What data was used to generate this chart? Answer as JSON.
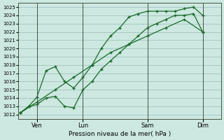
{
  "xlabel": "Pression niveau de la mer( hPa )",
  "bg_color": "#cce8e0",
  "grid_color": "#99bbbb",
  "line_color": "#1a6b2a",
  "marker": "+",
  "ylim": [
    1011.5,
    1025.5
  ],
  "yticks": [
    1012,
    1013,
    1014,
    1015,
    1016,
    1017,
    1018,
    1019,
    1020,
    1021,
    1022,
    1023,
    1024,
    1025
  ],
  "xlim": [
    0,
    11
  ],
  "xtick_labels": [
    "Ven",
    "Lun",
    "Sam",
    "Dim"
  ],
  "xtick_positions": [
    1.0,
    3.5,
    7.0,
    10.0
  ],
  "vline_positions": [
    1.0,
    3.5,
    7.0,
    10.0
  ],
  "series1_x": [
    0.1,
    0.6,
    1.0,
    1.5,
    2.0,
    2.5,
    3.0,
    3.5,
    4.0,
    4.5,
    5.0,
    5.5,
    6.0,
    6.5,
    7.0,
    7.5,
    8.0,
    8.5,
    9.0,
    9.5,
    10.0
  ],
  "series1_y": [
    1012.2,
    1013.0,
    1013.2,
    1014.0,
    1014.2,
    1013.0,
    1012.8,
    1015.0,
    1016.0,
    1017.5,
    1018.5,
    1019.5,
    1020.5,
    1021.5,
    1022.5,
    1023.0,
    1023.5,
    1024.0,
    1024.0,
    1024.2,
    1022.0
  ],
  "series2_x": [
    0.1,
    0.6,
    1.0,
    1.5,
    2.0,
    2.5,
    3.0,
    3.5,
    4.0,
    4.5,
    5.0,
    5.5,
    6.0,
    6.5,
    7.0,
    7.5,
    8.0,
    8.5,
    9.0,
    9.5,
    10.0
  ],
  "series2_y": [
    1012.2,
    1013.1,
    1014.1,
    1017.3,
    1017.8,
    1016.0,
    1015.2,
    1016.5,
    1018.0,
    1020.0,
    1021.5,
    1022.5,
    1023.8,
    1024.2,
    1024.5,
    1024.5,
    1024.5,
    1024.5,
    1024.8,
    1025.0,
    1024.0
  ],
  "series3_x": [
    0.1,
    1.0,
    2.0,
    3.0,
    4.0,
    5.0,
    6.0,
    7.0,
    8.0,
    9.0,
    10.0
  ],
  "series3_y": [
    1012.2,
    1013.5,
    1015.0,
    1016.5,
    1018.0,
    1019.5,
    1020.5,
    1021.5,
    1022.5,
    1023.5,
    1022.0
  ]
}
